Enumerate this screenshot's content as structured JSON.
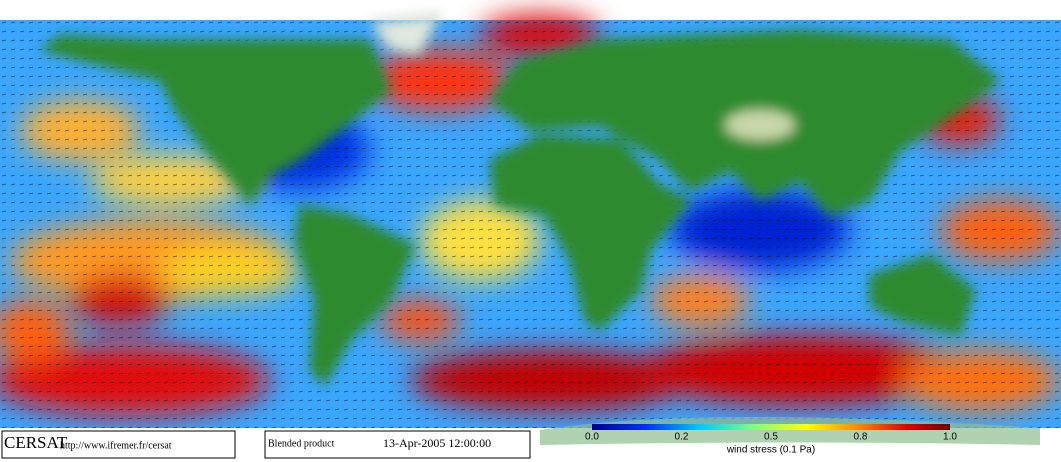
{
  "footer": {
    "logo": "CERSAT",
    "url": "http://www.ifremer.fr/cersat",
    "product": "Blended product",
    "date": "13-Apr-2005 12:00:00"
  },
  "colorbar": {
    "ticks": [
      "0.0",
      "0.2",
      "0.5",
      "0.8",
      "1.0"
    ],
    "label": "wind stress (0.1 Pa)"
  }
}
